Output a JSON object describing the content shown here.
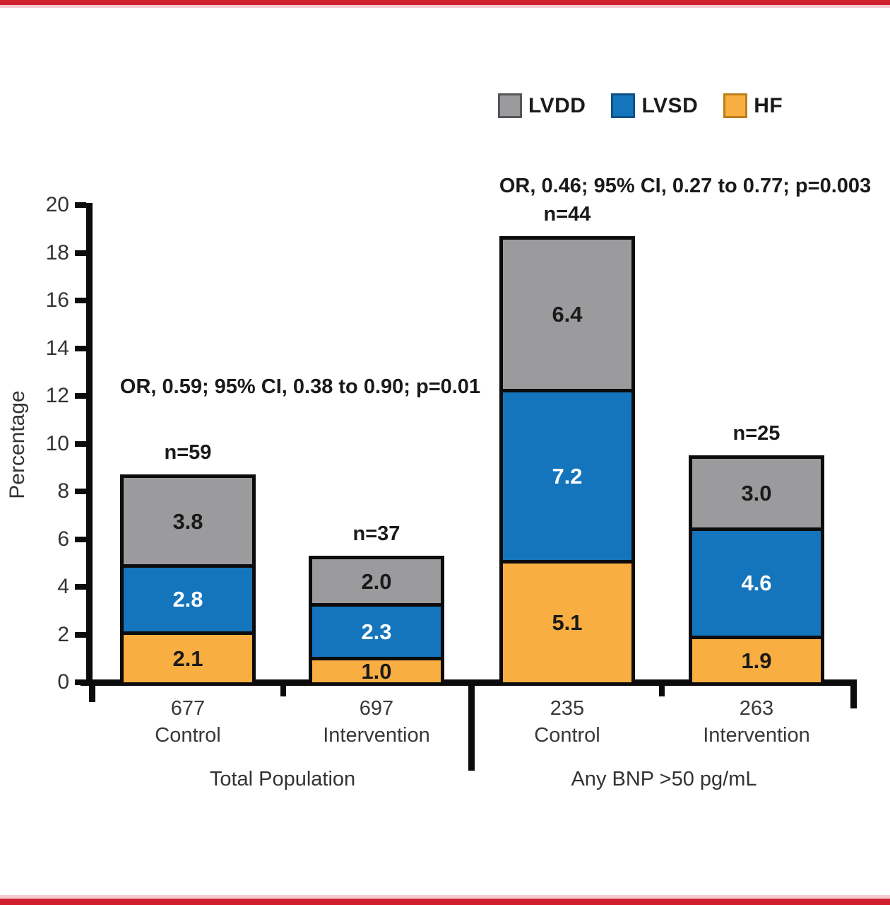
{
  "page": {
    "top_bar_color": "#D0202E",
    "bottom_bar_color": "#D0202E",
    "accent_light_color": "#F4C9CD",
    "background": "#ffffff"
  },
  "chart_data": {
    "type": "bar",
    "stacked": true,
    "ylabel": "Percentage",
    "ylim": [
      0,
      20
    ],
    "yticks": [
      0,
      2,
      4,
      6,
      8,
      10,
      12,
      14,
      16,
      18,
      20
    ],
    "grid": false,
    "legend_position": "top-right",
    "legend": [
      {
        "label": "LVDD"
      },
      {
        "label": "LVSD"
      },
      {
        "label": "HF"
      }
    ],
    "series_styles": {
      "LVDD": {
        "color": "#9B9B9D",
        "swatch_border": "#55565A",
        "value_color": "#1a1a1a"
      },
      "LVSD": {
        "color": "#1474BC",
        "swatch_border": "#0F5288",
        "value_color": "#ffffff"
      },
      "HF": {
        "color": "#F9AE42",
        "swatch_border": "#BF7E1A",
        "value_color": "#1a1a1a"
      }
    },
    "series_order_bottom_to_top": [
      "HF",
      "LVSD",
      "LVDD"
    ],
    "categories": [
      "677 Control",
      "697 Intervention",
      "235 Control",
      "263 Intervention"
    ],
    "series": [
      {
        "name": "LVDD",
        "values": [
          3.8,
          2.0,
          6.4,
          3.0
        ]
      },
      {
        "name": "LVSD",
        "values": [
          2.8,
          2.3,
          7.2,
          4.6
        ]
      },
      {
        "name": "HF",
        "values": [
          2.1,
          1.0,
          5.1,
          1.9
        ]
      }
    ],
    "groups": [
      {
        "label": "Total Population",
        "annotation": "OR, 0.59; 95% CI, 0.38 to 0.90; p=0.01",
        "bars": [
          {
            "n_label": "n=59",
            "x_label_line1": "677",
            "x_label_line2": "Control",
            "segments": [
              {
                "series": "HF",
                "value": 2.1,
                "label": "2.1"
              },
              {
                "series": "LVSD",
                "value": 2.8,
                "label": "2.8"
              },
              {
                "series": "LVDD",
                "value": 3.8,
                "label": "3.8"
              }
            ]
          },
          {
            "n_label": "n=37",
            "x_label_line1": "697",
            "x_label_line2": "Intervention",
            "segments": [
              {
                "series": "HF",
                "value": 1.0,
                "label": "1.0"
              },
              {
                "series": "LVSD",
                "value": 2.3,
                "label": "2.3"
              },
              {
                "series": "LVDD",
                "value": 2.0,
                "label": "2.0"
              }
            ]
          }
        ]
      },
      {
        "label": "Any BNP >50 pg/mL",
        "annotation": "OR, 0.46; 95% CI, 0.27 to 0.77; p=0.003",
        "bars": [
          {
            "n_label": "n=44",
            "x_label_line1": "235",
            "x_label_line2": "Control",
            "segments": [
              {
                "series": "HF",
                "value": 5.1,
                "label": "5.1"
              },
              {
                "series": "LVSD",
                "value": 7.2,
                "label": "7.2"
              },
              {
                "series": "LVDD",
                "value": 6.4,
                "label": "6.4"
              }
            ]
          },
          {
            "n_label": "n=25",
            "x_label_line1": "263",
            "x_label_line2": "Intervention",
            "segments": [
              {
                "series": "HF",
                "value": 1.9,
                "label": "1.9"
              },
              {
                "series": "LVSD",
                "value": 4.6,
                "label": "4.6"
              },
              {
                "series": "LVDD",
                "value": 3.0,
                "label": "3.0"
              }
            ]
          }
        ]
      }
    ]
  }
}
